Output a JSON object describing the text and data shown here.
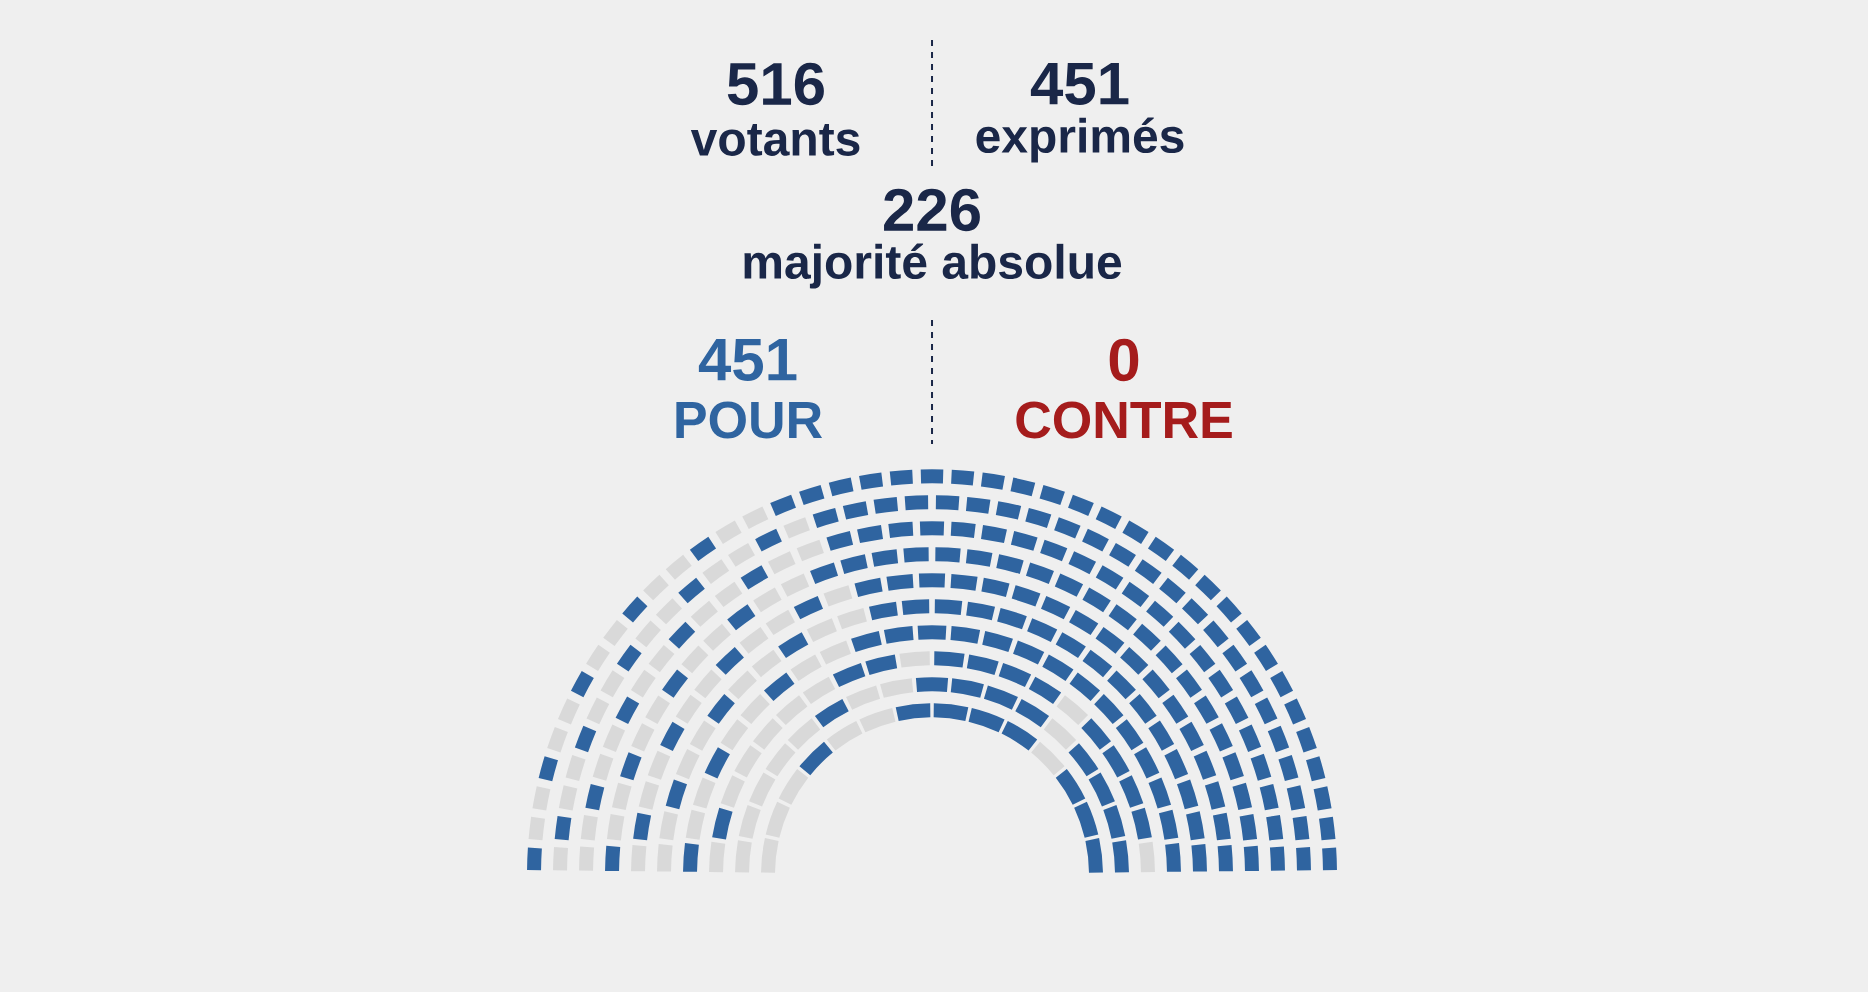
{
  "chart_data": {
    "type": "other",
    "categories": [
      "POUR",
      "CONTRE"
    ],
    "values": [
      451,
      0
    ],
    "colors": [
      "#2f64a0",
      "#a51c1c"
    ],
    "data_labels": true,
    "annotations": [
      "516",
      "votants",
      "451",
      "exprimés",
      "226",
      "majorité absolue"
    ]
  }
}
